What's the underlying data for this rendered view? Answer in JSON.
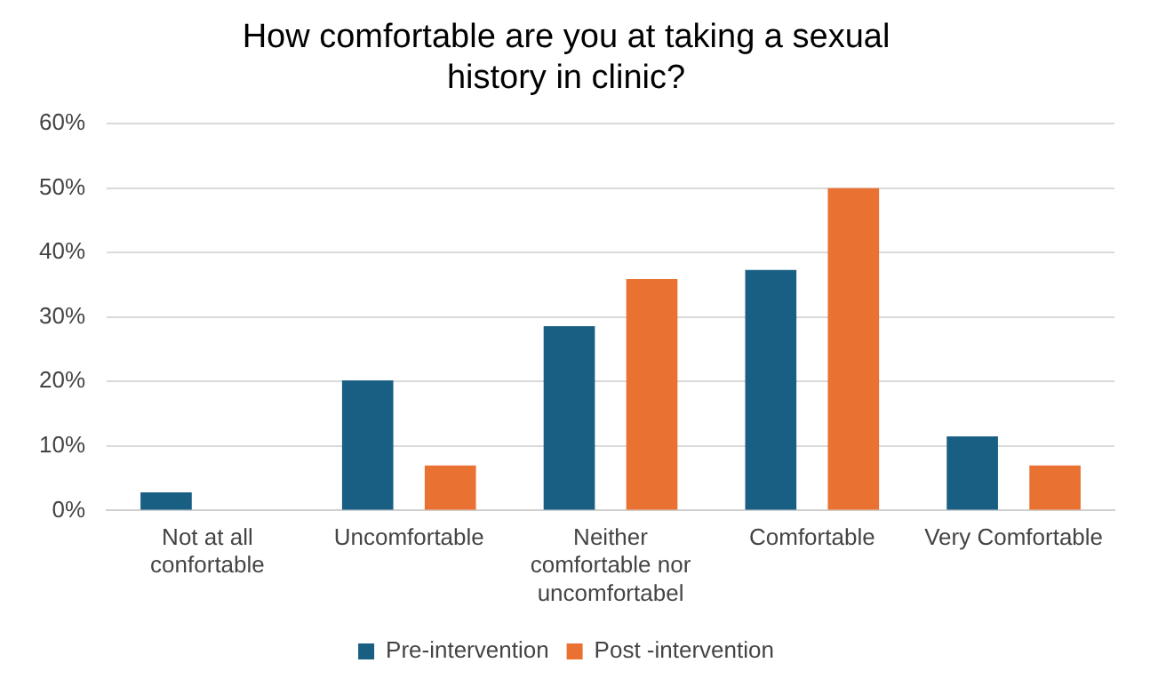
{
  "chart_data": {
    "type": "bar",
    "title": "How comfortable are you at taking a sexual history in clinic?",
    "categories": [
      "Not at all confortable",
      "Uncomfortable",
      "Neither comfortable nor uncomfortabel",
      "Comfortable",
      "Very Comfortable"
    ],
    "series": [
      {
        "name": "Pre-intervention",
        "color": "#195e83",
        "values": [
          2.8,
          20.2,
          28.6,
          37.3,
          11.5
        ]
      },
      {
        "name": "Post -intervention",
        "color": "#e97132",
        "values": [
          0,
          7,
          35.9,
          50,
          7
        ]
      }
    ],
    "ylim": [
      0,
      60
    ],
    "yticks": [
      {
        "value": 0,
        "label": "0%"
      },
      {
        "value": 10,
        "label": "10%"
      },
      {
        "value": 20,
        "label": "20%"
      },
      {
        "value": 30,
        "label": "30%"
      },
      {
        "value": 40,
        "label": "40%"
      },
      {
        "value": 50,
        "label": "50%"
      },
      {
        "value": 60,
        "label": "60%"
      }
    ],
    "grid": "y",
    "legend": "bottom"
  }
}
